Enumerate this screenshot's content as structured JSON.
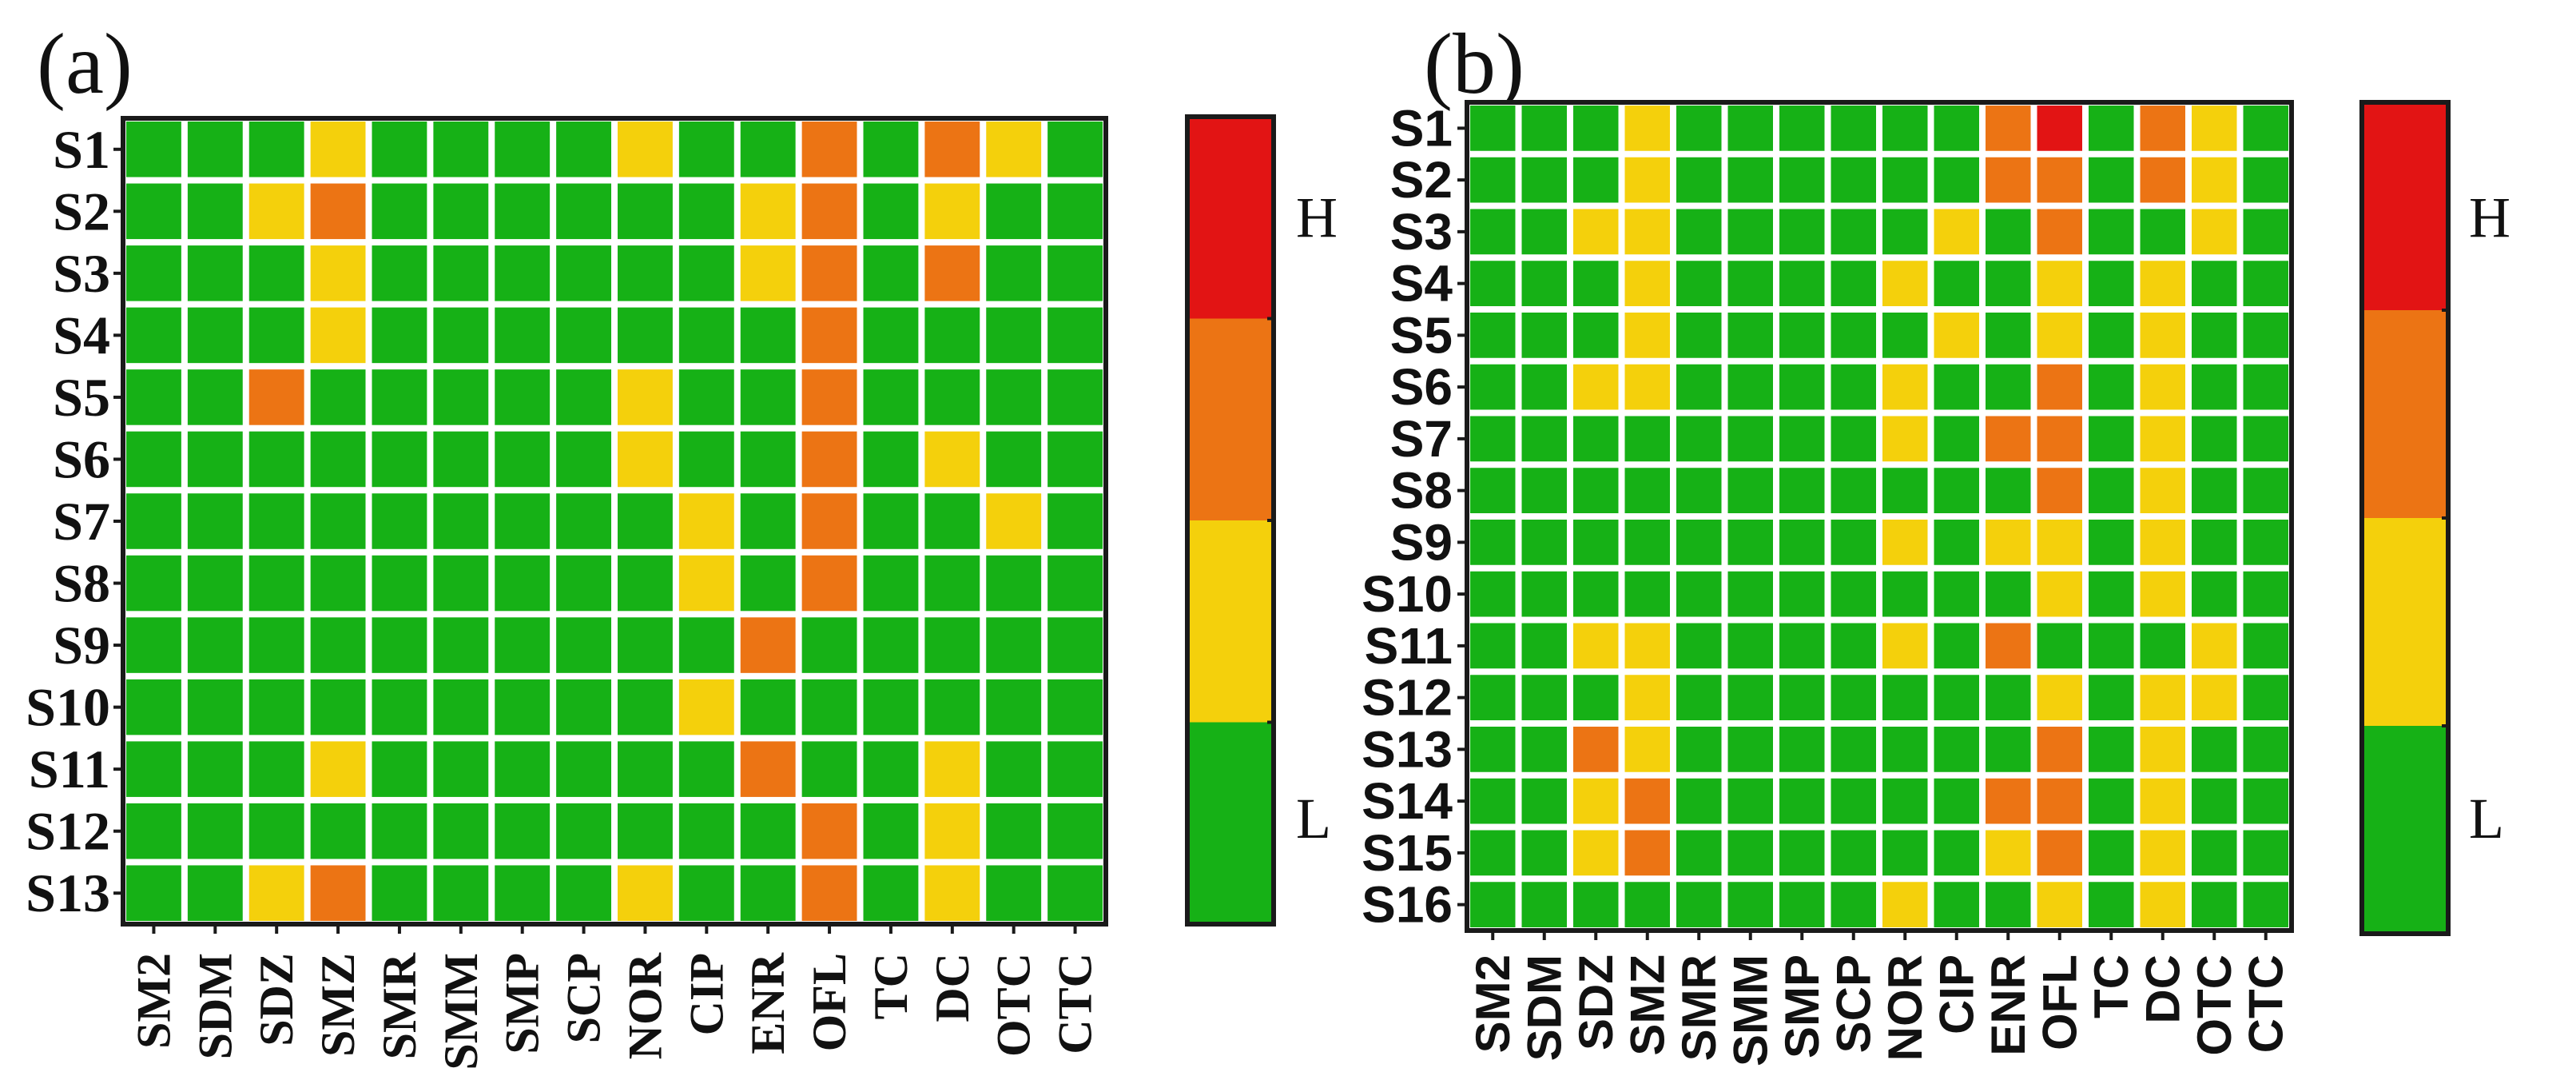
{
  "colors": {
    "L": "#16b116",
    "M": "#f4d00c",
    "MH": "#ec7414",
    "H": "#e21414",
    "gap": "#ffffff",
    "border": "#1a1a1a"
  },
  "chart_data": [
    {
      "type": "heatmap",
      "panel_label": "(a)",
      "columns": [
        "SM2",
        "SDM",
        "SDZ",
        "SMZ",
        "SMR",
        "SMM",
        "SMP",
        "SCP",
        "NOR",
        "CIP",
        "ENR",
        "OFL",
        "TC",
        "DC",
        "OTC",
        "CTC"
      ],
      "rows": [
        "S1",
        "S2",
        "S3",
        "S4",
        "S5",
        "S6",
        "S7",
        "S8",
        "S9",
        "S10",
        "S11",
        "S12",
        "S13"
      ],
      "levels": [
        [
          0,
          0,
          0,
          1,
          0,
          0,
          0,
          0,
          1,
          0,
          0,
          2,
          0,
          2,
          1,
          0
        ],
        [
          0,
          0,
          1,
          2,
          0,
          0,
          0,
          0,
          0,
          0,
          1,
          2,
          0,
          1,
          0,
          0
        ],
        [
          0,
          0,
          0,
          1,
          0,
          0,
          0,
          0,
          0,
          0,
          1,
          2,
          0,
          2,
          0,
          0
        ],
        [
          0,
          0,
          0,
          1,
          0,
          0,
          0,
          0,
          0,
          0,
          0,
          2,
          0,
          0,
          0,
          0
        ],
        [
          0,
          0,
          2,
          0,
          0,
          0,
          0,
          0,
          1,
          0,
          0,
          2,
          0,
          0,
          0,
          0
        ],
        [
          0,
          0,
          0,
          0,
          0,
          0,
          0,
          0,
          1,
          0,
          0,
          2,
          0,
          1,
          0,
          0
        ],
        [
          0,
          0,
          0,
          0,
          0,
          0,
          0,
          0,
          0,
          1,
          0,
          2,
          0,
          0,
          1,
          0
        ],
        [
          0,
          0,
          0,
          0,
          0,
          0,
          0,
          0,
          0,
          1,
          0,
          2,
          0,
          0,
          0,
          0
        ],
        [
          0,
          0,
          0,
          0,
          0,
          0,
          0,
          0,
          0,
          0,
          2,
          0,
          0,
          0,
          0,
          0
        ],
        [
          0,
          0,
          0,
          0,
          0,
          0,
          0,
          0,
          0,
          1,
          0,
          0,
          0,
          0,
          0,
          0
        ],
        [
          0,
          0,
          0,
          1,
          0,
          0,
          0,
          0,
          0,
          0,
          2,
          0,
          0,
          1,
          0,
          0
        ],
        [
          0,
          0,
          0,
          0,
          0,
          0,
          0,
          0,
          0,
          0,
          0,
          2,
          0,
          1,
          0,
          0
        ],
        [
          0,
          0,
          1,
          2,
          0,
          0,
          0,
          0,
          1,
          0,
          0,
          2,
          0,
          1,
          0,
          0
        ]
      ],
      "colorbar": {
        "high_label": "H",
        "low_label": "L"
      }
    },
    {
      "type": "heatmap",
      "panel_label": "(b)",
      "columns": [
        "SM2",
        "SDM",
        "SDZ",
        "SMZ",
        "SMR",
        "SMM",
        "SMP",
        "SCP",
        "NOR",
        "CIP",
        "ENR",
        "OFL",
        "TC",
        "DC",
        "OTC",
        "CTC"
      ],
      "rows": [
        "S1",
        "S2",
        "S3",
        "S4",
        "S5",
        "S6",
        "S7",
        "S8",
        "S9",
        "S10",
        "S11",
        "S12",
        "S13",
        "S14",
        "S15",
        "S16"
      ],
      "levels": [
        [
          0,
          0,
          0,
          1,
          0,
          0,
          0,
          0,
          0,
          0,
          2,
          3,
          0,
          2,
          1,
          0
        ],
        [
          0,
          0,
          0,
          1,
          0,
          0,
          0,
          0,
          0,
          0,
          2,
          2,
          0,
          2,
          1,
          0
        ],
        [
          0,
          0,
          1,
          1,
          0,
          0,
          0,
          0,
          0,
          1,
          0,
          2,
          0,
          0,
          1,
          0
        ],
        [
          0,
          0,
          0,
          1,
          0,
          0,
          0,
          0,
          1,
          0,
          0,
          1,
          0,
          1,
          0,
          0
        ],
        [
          0,
          0,
          0,
          1,
          0,
          0,
          0,
          0,
          0,
          1,
          0,
          1,
          0,
          1,
          0,
          0
        ],
        [
          0,
          0,
          1,
          1,
          0,
          0,
          0,
          0,
          1,
          0,
          0,
          2,
          0,
          1,
          0,
          0
        ],
        [
          0,
          0,
          0,
          0,
          0,
          0,
          0,
          0,
          1,
          0,
          2,
          2,
          0,
          1,
          0,
          0
        ],
        [
          0,
          0,
          0,
          0,
          0,
          0,
          0,
          0,
          0,
          0,
          0,
          2,
          0,
          1,
          0,
          0
        ],
        [
          0,
          0,
          0,
          0,
          0,
          0,
          0,
          0,
          1,
          0,
          1,
          1,
          0,
          1,
          0,
          0
        ],
        [
          0,
          0,
          0,
          0,
          0,
          0,
          0,
          0,
          0,
          0,
          0,
          1,
          0,
          1,
          0,
          0
        ],
        [
          0,
          0,
          1,
          1,
          0,
          0,
          0,
          0,
          1,
          0,
          2,
          0,
          0,
          0,
          1,
          0
        ],
        [
          0,
          0,
          0,
          1,
          0,
          0,
          0,
          0,
          0,
          0,
          0,
          1,
          0,
          1,
          1,
          0
        ],
        [
          0,
          0,
          2,
          1,
          0,
          0,
          0,
          0,
          0,
          0,
          0,
          2,
          0,
          1,
          0,
          0
        ],
        [
          0,
          0,
          1,
          2,
          0,
          0,
          0,
          0,
          0,
          0,
          2,
          2,
          0,
          1,
          0,
          0
        ],
        [
          0,
          0,
          1,
          2,
          0,
          0,
          0,
          0,
          0,
          0,
          1,
          2,
          0,
          1,
          0,
          0
        ],
        [
          0,
          0,
          0,
          0,
          0,
          0,
          0,
          0,
          1,
          0,
          0,
          1,
          0,
          1,
          0,
          0
        ]
      ],
      "colorbar": {
        "high_label": "H",
        "low_label": "L"
      }
    }
  ]
}
